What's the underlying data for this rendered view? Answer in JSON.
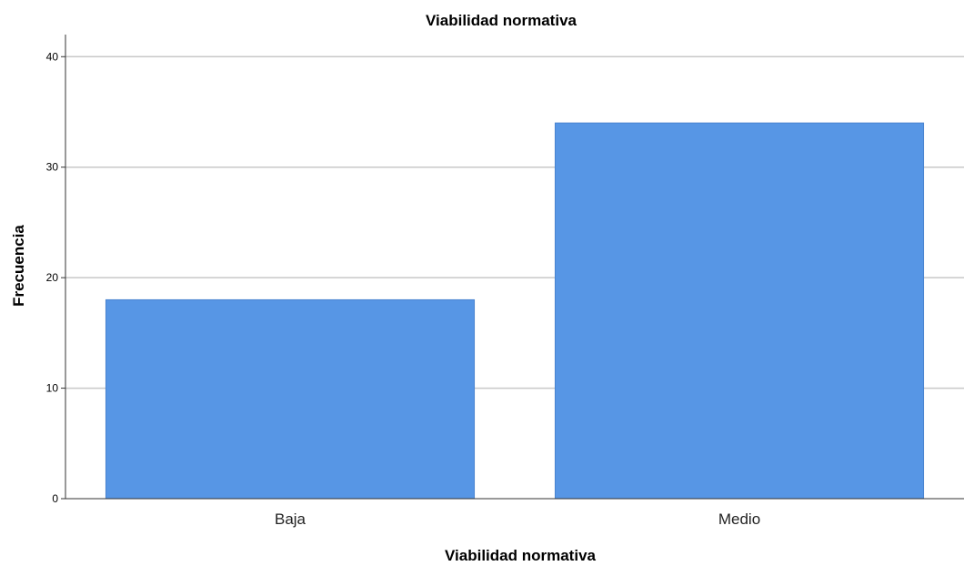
{
  "chart_data": {
    "type": "bar",
    "title": "Viabilidad normativa",
    "xlabel": "Viabilidad normativa",
    "ylabel": "Frecuencia",
    "categories": [
      "Baja",
      "Medio"
    ],
    "values": [
      18,
      34
    ],
    "ylim": [
      0,
      42
    ],
    "yticks": [
      0,
      10,
      20,
      30,
      40
    ],
    "grid": true,
    "bar_color": "#5796e5",
    "bar_edge_color": "#4a84d0"
  }
}
